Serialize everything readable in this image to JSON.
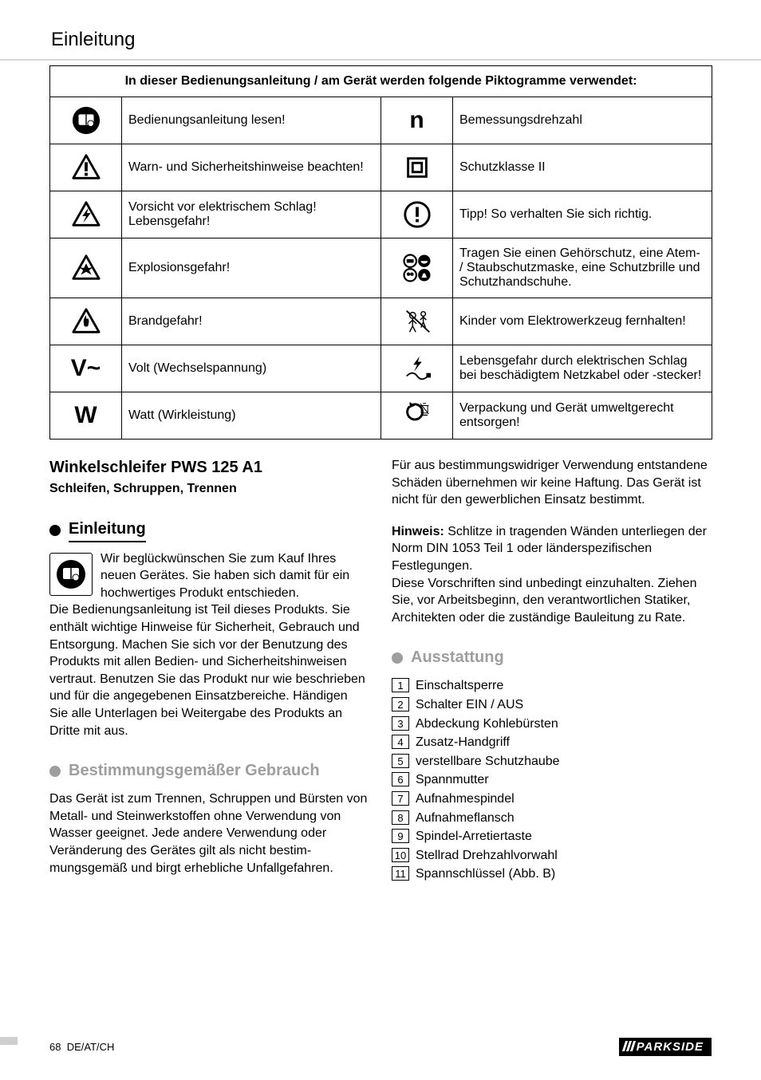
{
  "header": "Einleitung",
  "table": {
    "title": "In dieser Bedienungsanleitung / am Gerät werden folgende Piktogramme verwendet:",
    "rows": [
      {
        "icon_l": "read-manual",
        "glyph_l": "",
        "text_l": "Bedienungsanleitung lesen!",
        "icon_r": "letter",
        "glyph_r": "n",
        "text_r": "Bemessungsdrehzahl"
      },
      {
        "icon_l": "warning",
        "glyph_l": "",
        "text_l": "Warn- und Sicherheitshinweise beachten!",
        "icon_r": "class2",
        "glyph_r": "",
        "text_r": "Schutzklasse II"
      },
      {
        "icon_l": "shock",
        "glyph_l": "",
        "text_l": "Vorsicht vor elektrischem Schlag! Lebensgefahr!",
        "icon_r": "tip",
        "glyph_r": "",
        "text_r": "Tipp! So verhalten Sie sich richtig."
      },
      {
        "icon_l": "explosion",
        "glyph_l": "",
        "text_l": "Explosionsgefahr!",
        "icon_r": "ppe",
        "glyph_r": "",
        "text_r": "Tragen Sie einen Gehörschutz, eine Atem- / Staubschutzmaske, eine Schutz­brille und Schutzhandschuhe."
      },
      {
        "icon_l": "fire",
        "glyph_l": "",
        "text_l": "Brandgefahr!",
        "icon_r": "nokids",
        "glyph_r": "",
        "text_r": "Kinder vom Elektrowerkzeug fernhalten!"
      },
      {
        "icon_l": "letter",
        "glyph_l": "V~",
        "text_l": "Volt (Wechselspannung)",
        "icon_r": "cord",
        "glyph_r": "",
        "text_r": "Lebensgefahr durch elektrischen Schlag bei beschädigtem Netzkabel oder -stecker!"
      },
      {
        "icon_l": "letter",
        "glyph_l": "W",
        "text_l": "Watt (Wirkleistung)",
        "icon_r": "recycle",
        "glyph_r": "",
        "text_r": "Verpackung und Gerät umweltgerecht entsorgen!"
      }
    ]
  },
  "left": {
    "title": "Winkelschleifer PWS 125 A1",
    "subtitle": "Schleifen, Schruppen, Trennen",
    "h_intro": "Einleitung",
    "intro_lead": "Wir beglückwünschen Sie zum Kauf Ihres neuen Gerätes. Sie haben sich damit für ein hochwertiges Produkt entschieden.",
    "intro_rest": "Die Bedienungsanleitung ist Teil dieses Produkts. Sie enthält wichtige Hinweise für Sicherheit, Gebrauch und Entsorgung. Machen Sie sich vor der Benutzung des Produkts mit allen Bedien- und Sicherheitshinweisen vertraut. Benutzen Sie das Produkt nur wie beschrie­ben und für die angegebenen Einsatzbereiche. Händigen Sie alle Unterlagen bei Weitergabe des Produkts an Dritte mit aus.",
    "h_use": "Bestimmungsgemäßer Gebrauch",
    "use_body": "Das Gerät ist zum Trennen, Schruppen und Bürsten von Metall- und Steinwerkstoffen ohne Verwendung von Wasser geeignet. Jede andere Verwendung oder Veränderung des Gerätes gilt als nicht bestim­mungsgemäß und birgt erhebliche Unfallgefahren."
  },
  "right": {
    "use_cont": "Für aus bestimmungswidriger Verwendung entstandene Schäden übernehmen wir keine Haftung. Das Gerät ist nicht für den gewerblichen Einsatz bestimmt.",
    "hinweis_label": "Hinweis:",
    "hinweis_1": " Schlitze in tragenden Wänden unterliegen der Norm DIN 1053 Teil 1 oder länderspezifischen Festlegungen.",
    "hinweis_2": "Diese Vorschriften sind unbedingt einzuhalten. Ziehen Sie, vor Arbeitsbeginn, den verantwortlichen Statiker, Architekten oder die zuständige Bauleitung zu Rate.",
    "h_equip": "Ausstattung",
    "parts": [
      "Einschaltsperre",
      "Schalter EIN / AUS",
      "Abdeckung Kohlebürsten",
      "Zusatz-Handgriff",
      "verstellbare Schutzhaube",
      "Spannmutter",
      "Aufnahmespindel",
      "Aufnahmeflansch",
      "Spindel-Arretiertaste",
      "Stellrad Drehzahlvorwahl",
      "Spannschlüssel (Abb. B)"
    ]
  },
  "footer": {
    "page": "68",
    "lang": "DE/AT/CH",
    "brand": "PARKSIDE"
  }
}
